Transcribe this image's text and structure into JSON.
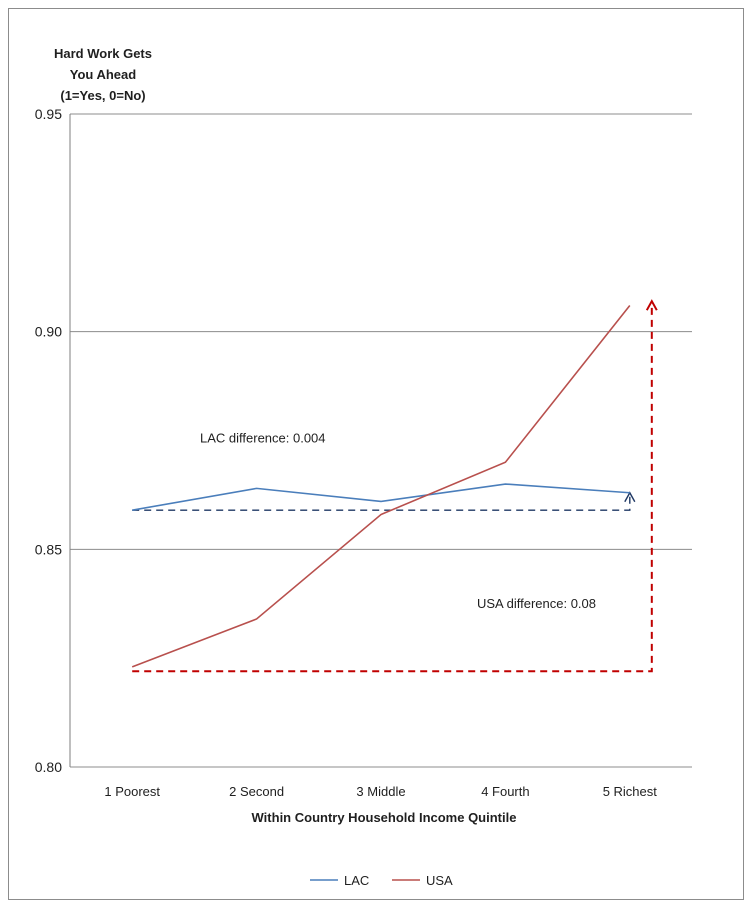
{
  "chart_data": {
    "type": "line",
    "title_lines": [
      "Hard Work Gets",
      "You Ahead",
      "(1=Yes, 0=No)"
    ],
    "xlabel": "Within Country Household Income Quintile",
    "ylabel": "",
    "categories": [
      "1 Poorest",
      "2 Second",
      "3 Middle",
      "4 Fourth",
      "5 Richest"
    ],
    "ylim": [
      0.8,
      0.95
    ],
    "yticks": [
      "0.80",
      "0.85",
      "0.90",
      "0.95"
    ],
    "grid": true,
    "legend_position": "bottom",
    "series": [
      {
        "name": "LAC",
        "color": "#4a7ebb",
        "values": [
          0.859,
          0.864,
          0.861,
          0.865,
          0.863
        ]
      },
      {
        "name": "USA",
        "color": "#b8504d",
        "values": [
          0.823,
          0.834,
          0.858,
          0.87,
          0.906
        ]
      }
    ],
    "annotations": [
      {
        "text": "LAC difference:  0.004",
        "series": "LAC",
        "from": 0.859,
        "to": 0.863,
        "color": "#1f3864"
      },
      {
        "text": "USA difference:  0.08",
        "series": "USA",
        "from": 0.822,
        "to": 0.907,
        "color": "#c00000"
      }
    ]
  }
}
